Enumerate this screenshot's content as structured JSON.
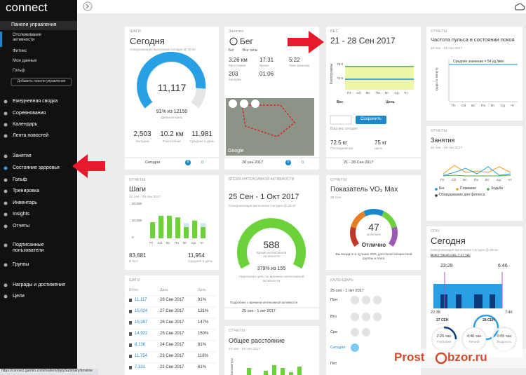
{
  "browser": {
    "status_url": "https://connect.garmin.com/modern/dailySummary/timeline"
  },
  "sidebar": {
    "logo": "connect",
    "dashboards": "Панели управления",
    "dashboard_items": [
      "Отслеживание активности",
      "Фитнес",
      "Мои данные",
      "Гольф"
    ],
    "add_button": "Добавить панели управления",
    "groups": [
      [
        "Ежедневная сводка",
        "Соревнования",
        "Календарь",
        "Лента новостей"
      ],
      [
        "Занятия",
        "Состояние здоровья",
        "Гольф",
        "Тренировка",
        "Инвентарь",
        "Insights",
        "Отчеты"
      ],
      [
        "Подписанные пользователи",
        "Группы"
      ],
      [
        "Награды и достижения",
        "Цели"
      ]
    ]
  },
  "steps_today": {
    "label": "ШАГИ",
    "title": "Сегодня",
    "sync": "Синхронизация выполнена Сегодня @ 20:42",
    "steps": "11,117",
    "goal": "91% из 12150",
    "goal_label": "Дневная цель",
    "stats": [
      {
        "value": "2,503",
        "label": "Калории"
      },
      {
        "value": "10.2 км",
        "label": "Расстояние"
      },
      {
        "value": "11,981",
        "label": "Среднее в день"
      }
    ],
    "footer": "Сегодня",
    "badge": "6",
    "likes": "0"
  },
  "activities": {
    "label": "Занятия",
    "title": "Бег",
    "filter": "Бег",
    "filter2": "Все типы",
    "stats": [
      {
        "value": "3.26 км",
        "label": "Расстояние"
      },
      {
        "value": "17:31",
        "label": "Время"
      },
      {
        "value": "5:22",
        "label": "Темп (мин/км)"
      },
      {
        "value": "203",
        "label": "Калории"
      },
      {
        "value": "01:06"
      }
    ],
    "map_credit": "Google",
    "footer": "28 сен 2017",
    "badge": "0",
    "likes": "0"
  },
  "weight": {
    "label": "ВЕС",
    "title": "21 - 28 Сен 2017",
    "y_axis": "Килограммы",
    "yticks": [
      "75.0",
      "72.5"
    ],
    "days": [
      "Пт",
      "Сб",
      "Вс",
      "Пн",
      "Вт",
      "Ср",
      "Чт"
    ],
    "legend": [
      "Вес",
      "Цель"
    ],
    "save": "Сохранить",
    "today": "Ваш вес сегодня",
    "stats": [
      {
        "value": "72.5 кг",
        "label": "Последний вес"
      },
      {
        "value": "75 кг",
        "label": "Цель"
      }
    ],
    "footer": "21 - 28 Сен 2017"
  },
  "heart_rate": {
    "label": "ОТЧЕТЫ",
    "title": "Частота пульса в состоянии покоя",
    "date": "22 сен - 28 сен 2017",
    "average": "Среднее значение = 54 уд./мин",
    "y_axis": "Удары в минуту",
    "days": [
      "Пт",
      "Сб",
      "Вс",
      "Пн",
      "Вт",
      "Ср",
      "Чт"
    ]
  },
  "activities_report": {
    "label": "ОТЧЕТЫ",
    "title": "Занятия",
    "date": "22 сен - 28 сен 2017",
    "days": [
      "Пт",
      "Сб",
      "Вс",
      "Пн",
      "Вт",
      "Ср",
      "Чт"
    ],
    "legend": [
      "Бег",
      "Плавание",
      "Ходьба",
      "Оборудование для фитнеса"
    ]
  },
  "steps_report": {
    "label": "ОТЧЕТЫ",
    "title": "Шаги",
    "date": "22 сен - 28 сен 2017",
    "yticks": [
      "20,000",
      "10,000",
      "0"
    ],
    "days": [
      "Пт",
      "Сб",
      "Вс",
      "Пн",
      "Вт",
      "Ср",
      "Чт"
    ],
    "stats": [
      {
        "value": "83,681",
        "label": "Итого"
      },
      {
        "value": "11,954",
        "label": "Среднее в день"
      }
    ]
  },
  "intensity": {
    "label": "ВРЕМЯ ИНТЕНСИВНОЙ АКТИВНОСТИ",
    "title": "25 Сен - 1 Окт 2017",
    "sync": "Синхронизация выполнена Сегодня @ 20:42",
    "minutes": "588",
    "minutes_label": "Время интенсивной активности",
    "goal": "379% из 155",
    "goal_label": "Недельная цель по времени интенсивной активности",
    "more": "Подробнее о времени интенсивной активности",
    "footer": "25 сен - 1 окт 2017"
  },
  "vo2": {
    "label": "ОТЧЕТЫ",
    "title": "Показатель VO₂ Max",
    "date": "28 Сен",
    "value": "47",
    "unit": "мл/кг/мин",
    "rating": "Отлично",
    "description": "Вы входите в лучшие 20% для своей возрастной группы и пола."
  },
  "steps_table": {
    "label": "ШАГИ",
    "columns": [
      "Итого",
      "Дата",
      "Цель"
    ],
    "rows": [
      [
        "11,117",
        "28 Сен 2017",
        "91%"
      ],
      [
        "15,024",
        "27 Сен 2017",
        "131%"
      ],
      [
        "15,397",
        "26 Сен 2017",
        "147%"
      ],
      [
        "14,922",
        "25 Сен 2017",
        "150%"
      ],
      [
        "8,136",
        "24 Сен 2017",
        "81%"
      ],
      [
        "11,754",
        "23 Сен 2017",
        "118%"
      ],
      [
        "7,331",
        "22 Сен 2017",
        "61%"
      ]
    ]
  },
  "distance_report": {
    "label": "ОТЧЕТЫ",
    "title": "Общее расстояние",
    "date": "22 сен - 28 сен 2017",
    "y_axis": "Километры"
  },
  "calendar": {
    "label": "КАЛЕНДАРЬ",
    "date": "25 сен - 1 окт 2017",
    "days": [
      "Пон",
      "Вто",
      "Сре",
      "Сегодня",
      "Пят"
    ]
  },
  "sleep": {
    "label": "СОН",
    "title": "Сегодня",
    "sync": "Синхронизация выполнена Сегодня @ 20:42",
    "total": "Всего часов сна: 7:17 час",
    "start": "23:29",
    "end": "6:46",
    "axis_start": "22:38",
    "axis_end": "7:46",
    "dates": [
      "27 СЕН",
      "28 СЕН"
    ],
    "stages": [
      {
        "value": "2:26 час",
        "label": "Глубокий"
      },
      {
        "value": "4:40 час",
        "label": "Легкий"
      },
      {
        "value": "0:09 час",
        "label": "Бодрость"
      }
    ]
  },
  "watermark": {
    "left": "Prost",
    "right": "bzor.ru"
  }
}
